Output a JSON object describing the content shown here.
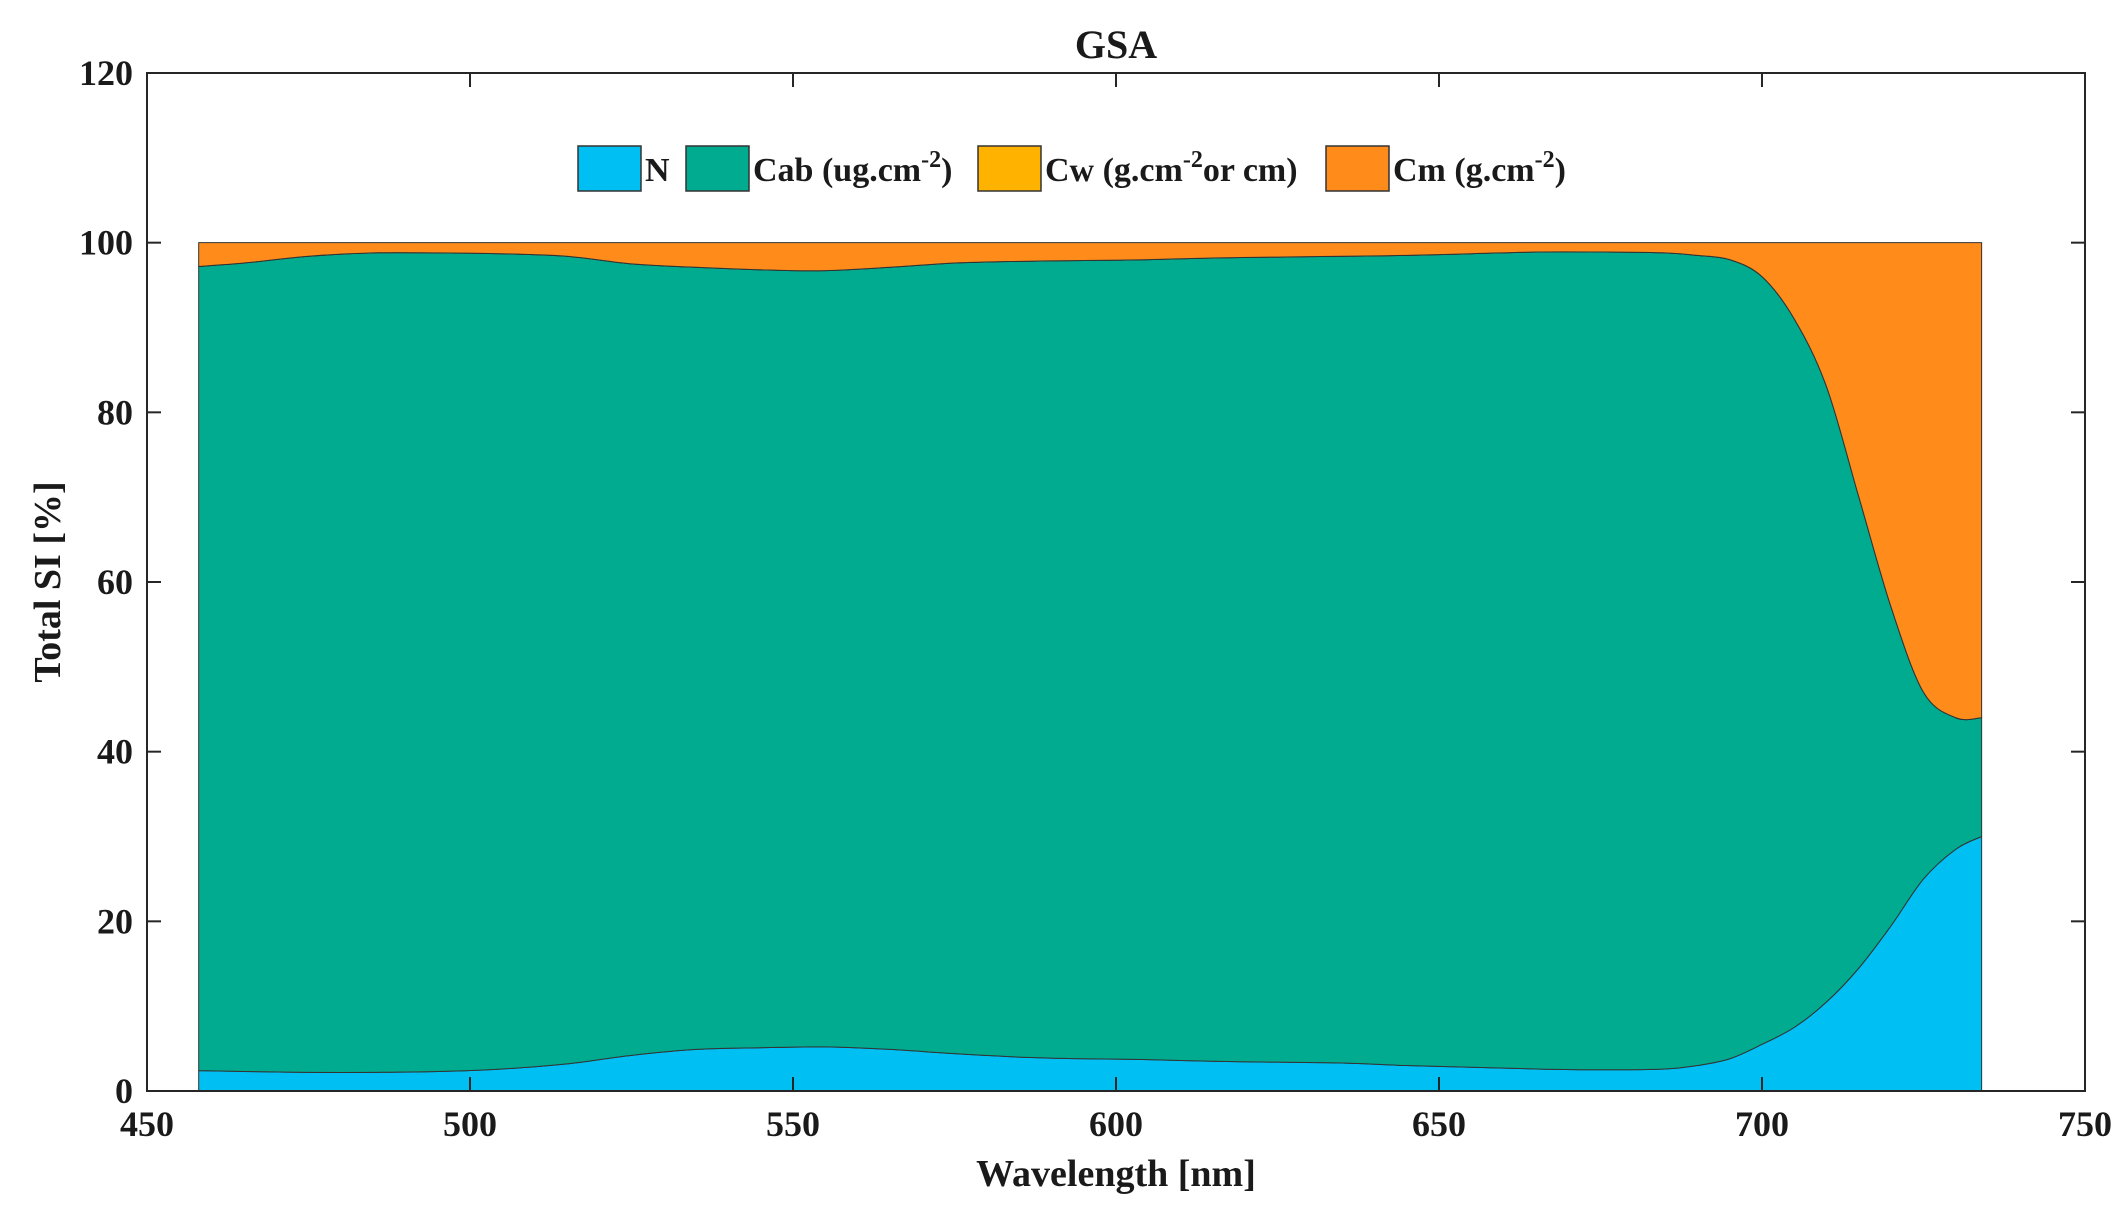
{
  "chart_data": {
    "type": "area",
    "stacked": true,
    "title": "GSA",
    "xlabel": "Wavelength [nm]",
    "ylabel": "Total SI [%]",
    "xlim": [
      450,
      750
    ],
    "ylim": [
      0,
      120
    ],
    "xticks": [
      450,
      500,
      550,
      600,
      650,
      700,
      750
    ],
    "yticks": [
      0,
      20,
      40,
      60,
      80,
      100,
      120
    ],
    "grid": false,
    "legend_position": "top-center",
    "legend_orientation": "horizontal",
    "x": [
      458,
      465,
      475,
      485,
      495,
      505,
      515,
      525,
      535,
      545,
      555,
      565,
      575,
      585,
      595,
      605,
      615,
      625,
      635,
      645,
      655,
      665,
      675,
      685,
      690,
      695,
      700,
      705,
      710,
      715,
      720,
      725,
      730,
      734
    ],
    "series": [
      {
        "name": "N",
        "color": "#00BFF2",
        "values": [
          2.4,
          2.3,
          2.2,
          2.2,
          2.3,
          2.6,
          3.2,
          4.2,
          4.9,
          5.1,
          5.2,
          4.9,
          4.4,
          4.0,
          3.8,
          3.7,
          3.5,
          3.4,
          3.3,
          3.0,
          2.8,
          2.6,
          2.5,
          2.6,
          3.0,
          3.8,
          5.5,
          7.5,
          10.5,
          14.5,
          19.5,
          25.0,
          28.5,
          30.0
        ]
      },
      {
        "name": "Cab (ug.cm-2)",
        "color": "#00AB90",
        "values": [
          94.8,
          95.3,
          96.2,
          96.6,
          96.5,
          96.1,
          95.2,
          93.3,
          92.2,
          91.7,
          91.5,
          92.2,
          93.2,
          93.8,
          94.1,
          94.3,
          94.7,
          94.9,
          95.1,
          95.5,
          95.9,
          96.3,
          96.4,
          96.2,
          95.5,
          94.2,
          90.5,
          83.5,
          72.5,
          55.5,
          37.5,
          22.0,
          15.5,
          14.0
        ]
      },
      {
        "name": "Cw (g.cm-2or cm)",
        "color": "#FFB300",
        "values": [
          0,
          0,
          0,
          0,
          0,
          0,
          0,
          0,
          0,
          0,
          0,
          0,
          0,
          0,
          0,
          0,
          0,
          0,
          0,
          0,
          0,
          0,
          0,
          0,
          0,
          0,
          0,
          0,
          0,
          0,
          0,
          0,
          0,
          0
        ]
      },
      {
        "name": "Cm (g.cm-2)",
        "color": "#FF8C1A",
        "values": [
          2.8,
          2.4,
          1.6,
          1.2,
          1.2,
          1.3,
          1.6,
          2.5,
          2.9,
          3.2,
          3.3,
          2.9,
          2.4,
          2.2,
          2.1,
          2.0,
          1.8,
          1.7,
          1.6,
          1.5,
          1.3,
          1.1,
          1.1,
          1.2,
          1.5,
          2.0,
          4.0,
          9.0,
          17.0,
          30.0,
          43.0,
          53.0,
          56.0,
          56.0
        ]
      }
    ],
    "legend_entries": [
      {
        "base": "N",
        "sup": "",
        "tail": ""
      },
      {
        "base": "Cab (ug.cm",
        "sup": "-2",
        "tail": ")"
      },
      {
        "base": "Cw (g.cm",
        "sup": "-2",
        "tail": "or cm)"
      },
      {
        "base": "Cm (g.cm",
        "sup": "-2",
        "tail": ")"
      }
    ]
  }
}
